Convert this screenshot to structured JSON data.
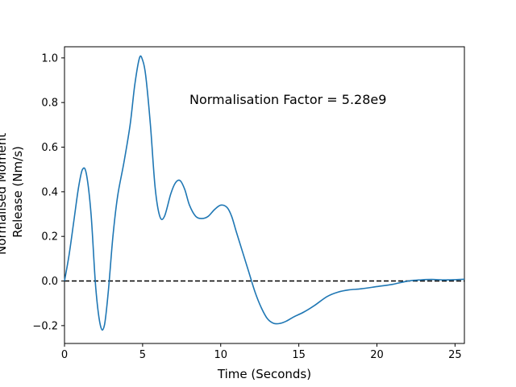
{
  "chart_data": {
    "type": "line",
    "xlabel": "Time (Seconds)",
    "ylabel": "Normalised Moment Release (Nm/s)",
    "xlim": [
      0,
      25.6
    ],
    "ylim": [
      -0.28,
      1.05
    ],
    "xticks": [
      0,
      5,
      10,
      15,
      20,
      25
    ],
    "yticks": [
      -0.2,
      0.0,
      0.2,
      0.4,
      0.6,
      0.8,
      1.0
    ],
    "xtick_labels": [
      "0",
      "5",
      "10",
      "15",
      "20",
      "25"
    ],
    "ytick_labels": [
      "−0.2",
      "0.0",
      "0.2",
      "0.4",
      "0.6",
      "0.8",
      "1.0"
    ],
    "grid": false,
    "annotation": "Normalisation Factor = 5.28e9",
    "reference_line": {
      "y": 0,
      "style": "dashed",
      "color": "#000000"
    },
    "series": [
      {
        "color": "#1f77b4",
        "x": [
          0,
          0.3,
          0.6,
          0.9,
          1.15,
          1.4,
          1.7,
          2.0,
          2.3,
          2.55,
          2.8,
          3.1,
          3.4,
          3.8,
          4.2,
          4.5,
          4.8,
          5.0,
          5.2,
          5.5,
          5.8,
          6.1,
          6.4,
          6.8,
          7.1,
          7.4,
          7.7,
          8.0,
          8.4,
          8.8,
          9.2,
          9.6,
          10.0,
          10.4,
          10.7,
          11.0,
          11.4,
          11.8,
          12.2,
          12.6,
          13.0,
          13.4,
          13.8,
          14.2,
          14.7,
          15.3,
          16.0,
          16.8,
          17.5,
          18.2,
          19.0,
          20.0,
          21.0,
          22.0,
          22.8,
          23.5,
          24.3,
          25.0,
          25.6
        ],
        "y": [
          0,
          0.12,
          0.27,
          0.42,
          0.5,
          0.48,
          0.3,
          -0.03,
          -0.2,
          -0.2,
          -0.05,
          0.2,
          0.38,
          0.53,
          0.7,
          0.88,
          1.0,
          0.99,
          0.92,
          0.7,
          0.42,
          0.29,
          0.29,
          0.39,
          0.44,
          0.45,
          0.41,
          0.34,
          0.29,
          0.28,
          0.29,
          0.32,
          0.34,
          0.33,
          0.29,
          0.22,
          0.13,
          0.04,
          -0.05,
          -0.12,
          -0.17,
          -0.19,
          -0.19,
          -0.18,
          -0.16,
          -0.14,
          -0.11,
          -0.07,
          -0.05,
          -0.04,
          -0.035,
          -0.025,
          -0.015,
          0.0,
          0.005,
          0.007,
          0.005,
          0.006,
          0.008
        ]
      }
    ]
  }
}
